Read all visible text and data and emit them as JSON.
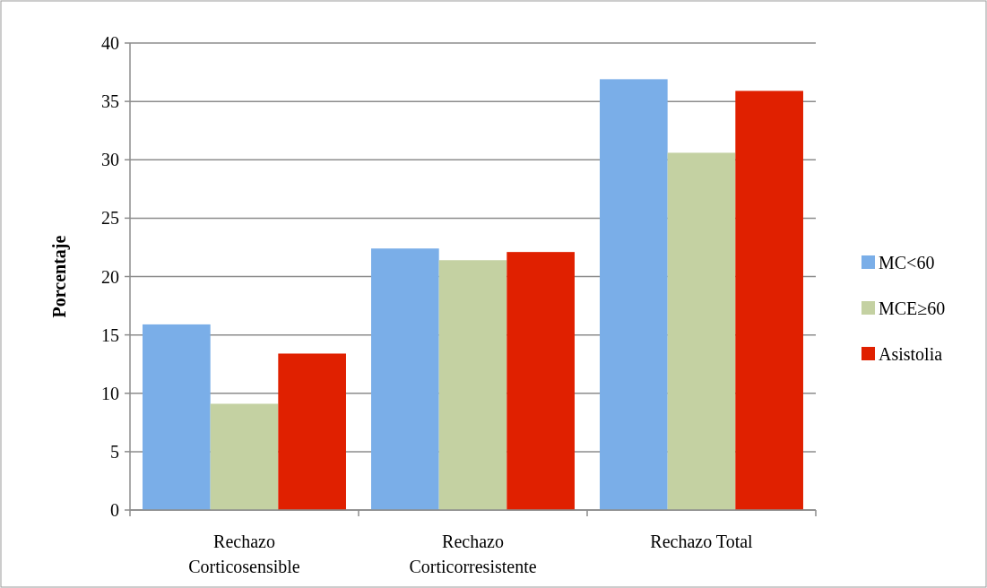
{
  "chart_data": {
    "type": "bar",
    "ylabel": "Porcentaje",
    "categories": [
      "Rechazo\nCorticosensible",
      "Rechazo\nCorticorresistente",
      "Rechazo Total"
    ],
    "series": [
      {
        "name": "MC<60",
        "color": "#7aaee8",
        "values": [
          15.9,
          22.4,
          36.9
        ]
      },
      {
        "name": "MCE≥60",
        "color": "#c4d1a2",
        "values": [
          9.1,
          21.4,
          30.6
        ]
      },
      {
        "name": "Asistolia",
        "color": "#e02000",
        "values": [
          13.4,
          22.1,
          35.9
        ]
      }
    ],
    "ylim": [
      0,
      40
    ],
    "yticks": [
      0,
      5,
      10,
      15,
      20,
      25,
      30,
      35,
      40
    ],
    "grid": "y",
    "legend": "right"
  }
}
